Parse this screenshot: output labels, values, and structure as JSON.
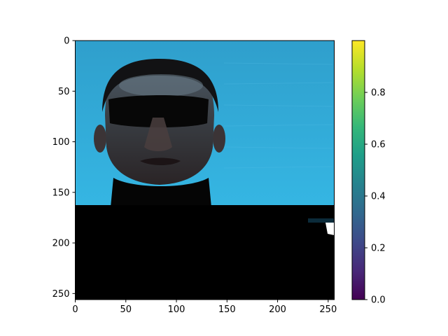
{
  "chart_data": {
    "type": "heatmap",
    "title": "",
    "xlabel": "",
    "ylabel": "",
    "xlim": [
      0,
      255
    ],
    "ylim": [
      255,
      0
    ],
    "xticks": [
      0,
      50,
      100,
      150,
      200,
      250
    ],
    "yticks": [
      0,
      50,
      100,
      150,
      200,
      250
    ],
    "image": {
      "content": "camera photograph of a man's head and shoulders: dark turtleneck, blacked-out band across the eyes, cyan-blue background",
      "width": 256,
      "height": 256,
      "regions": [
        {
          "name": "background",
          "color": "#2a9fd0",
          "x": [
            0,
            255
          ],
          "y": [
            0,
            163
          ]
        },
        {
          "name": "dark-lower-region",
          "color": "#000000",
          "x": [
            0,
            255
          ],
          "y": [
            163,
            255
          ]
        },
        {
          "name": "head-top",
          "y_top": 18
        },
        {
          "name": "eye-band",
          "y": [
            55,
            83
          ],
          "x": [
            33,
            132
          ]
        },
        {
          "name": "face",
          "x": [
            28,
            148
          ],
          "y": [
            18,
            140
          ]
        },
        {
          "name": "turtleneck",
          "x": [
            35,
            133
          ],
          "y": [
            135,
            163
          ]
        }
      ]
    },
    "colorbar": {
      "colormap": "viridis",
      "range": [
        0,
        1
      ],
      "ticks": [
        "0.0",
        "0.2",
        "0.4",
        "0.6",
        "0.8"
      ],
      "tick_values": [
        0,
        0.2,
        0.4,
        0.6,
        0.8
      ],
      "stops": [
        "#440154",
        "#482878",
        "#3e4989",
        "#31688e",
        "#26828e",
        "#1f9e89",
        "#35b779",
        "#6ece58",
        "#b5de2b",
        "#fde725"
      ]
    }
  }
}
